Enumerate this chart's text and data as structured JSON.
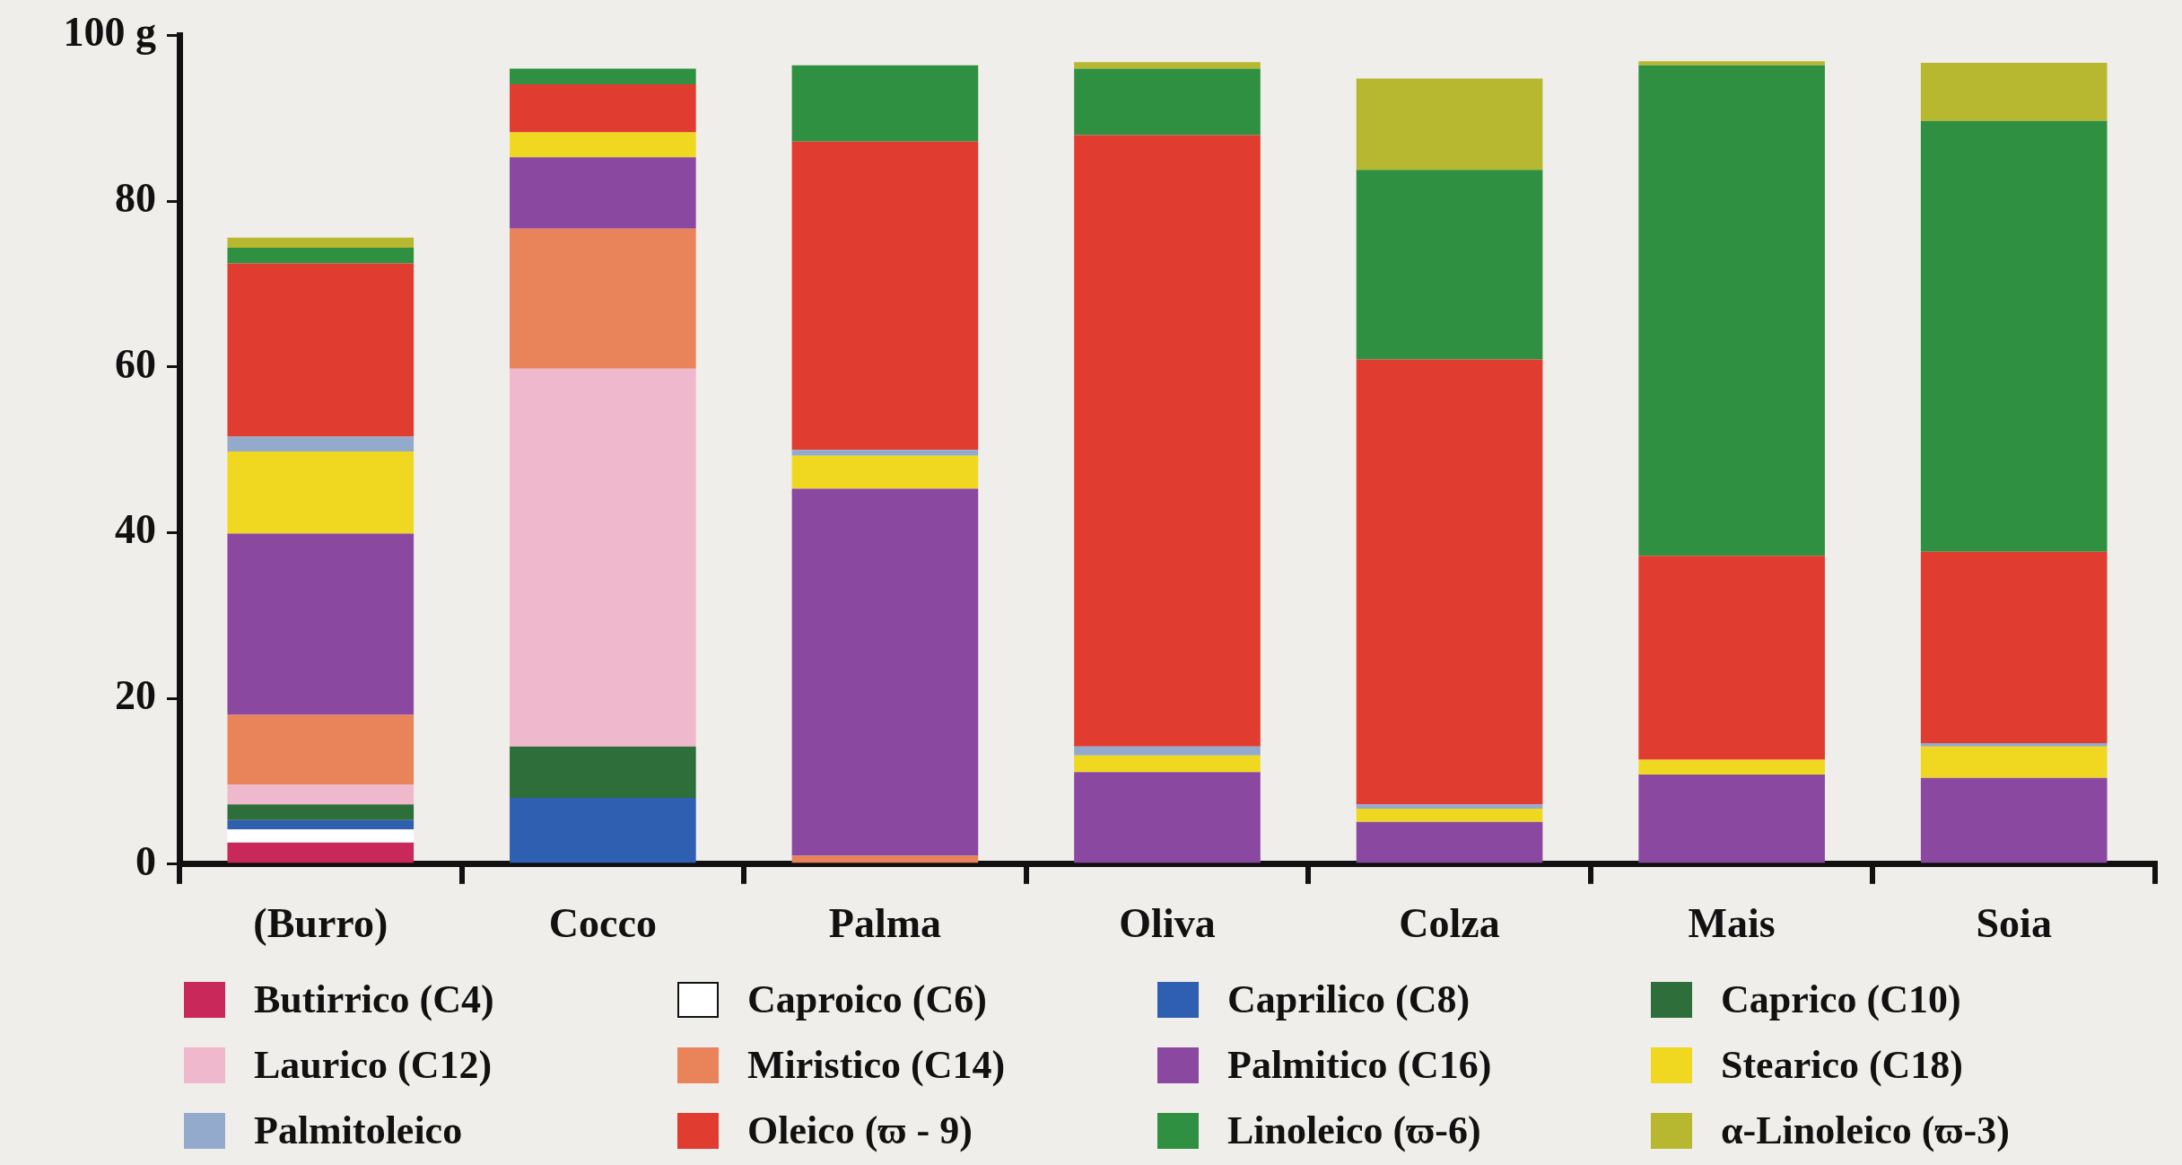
{
  "chart_data": {
    "type": "bar",
    "stacked": true,
    "categories": [
      "(Burro)",
      "Cocco",
      "Palma",
      "Oliva",
      "Colza",
      "Mais",
      "Soia"
    ],
    "ylim": [
      0,
      100
    ],
    "yticks": [
      0,
      20,
      40,
      60,
      80,
      {
        "value": 100,
        "label": "100 g"
      }
    ],
    "grid": false,
    "legend": "bottom",
    "series": [
      {
        "name": "Butirrico (C4)",
        "color": "#c8285a",
        "values": [
          2.6,
          null,
          null,
          null,
          null,
          null,
          null
        ]
      },
      {
        "name": "Caproico (C6)",
        "color": "#ffffff",
        "values": [
          1.6,
          null,
          null,
          null,
          null,
          null,
          null
        ]
      },
      {
        "name": "Caprilico (C8)",
        "color": "#2f5fb0",
        "values": [
          1.1,
          8.0,
          null,
          null,
          null,
          null,
          null
        ]
      },
      {
        "name": "Caprico (C10)",
        "color": "#2e6e3a",
        "values": [
          1.9,
          6.2,
          null,
          null,
          null,
          null,
          null
        ]
      },
      {
        "name": "Laurico (C12)",
        "color": "#f0b8cc",
        "values": [
          2.4,
          45.6,
          null,
          null,
          null,
          null,
          null
        ]
      },
      {
        "name": "Miristico (C14)",
        "color": "#e8835a",
        "values": [
          8.4,
          16.9,
          1.0,
          null,
          null,
          null,
          null
        ]
      },
      {
        "name": "Palmitico (C16)",
        "color": "#8a48a0",
        "values": [
          21.9,
          8.6,
          44.3,
          11.1,
          5.1,
          10.8,
          10.4
        ]
      },
      {
        "name": "Stearico (C18)",
        "color": "#f0d820",
        "values": [
          9.9,
          3.0,
          4.0,
          2.0,
          1.6,
          1.8,
          3.8
        ]
      },
      {
        "name": "Palmitoleico",
        "color": "#94aacc",
        "values": [
          1.8,
          null,
          0.7,
          1.1,
          0.5,
          null,
          0.4
        ]
      },
      {
        "name": "Oleico (ϖ - 9)",
        "color": "#e03c30",
        "values": [
          20.9,
          5.8,
          37.2,
          73.8,
          53.7,
          24.6,
          23.1
        ]
      },
      {
        "name": "Linoleico (ϖ-6)",
        "color": "#2e9040",
        "values": [
          1.9,
          1.9,
          9.2,
          8.0,
          22.9,
          59.2,
          52.0
        ]
      },
      {
        "name": "α-Linoleico (ϖ-3)",
        "color": "#b8b830",
        "values": [
          1.2,
          null,
          null,
          0.8,
          11.0,
          0.5,
          7.0
        ]
      }
    ]
  }
}
